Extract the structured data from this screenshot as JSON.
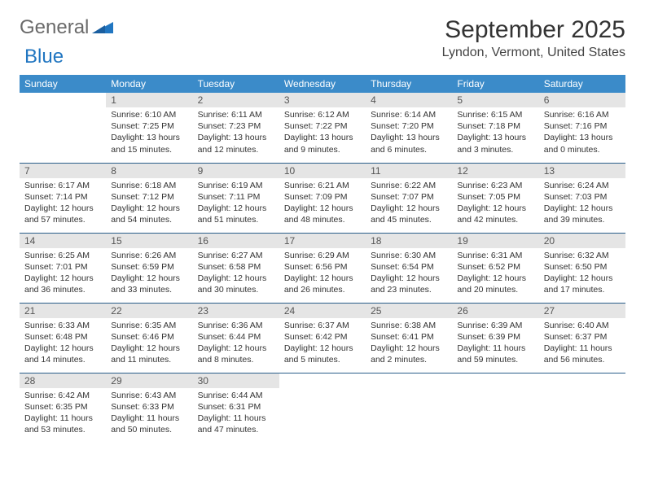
{
  "logo": {
    "text1": "General",
    "text2": "Blue"
  },
  "title": "September 2025",
  "location": "Lyndon, Vermont, United States",
  "colors": {
    "header_bg": "#3b8bc9",
    "header_text": "#ffffff",
    "daynum_bg": "#e5e5e5",
    "row_border": "#2a5e8a",
    "logo_gray": "#6a6a6a",
    "logo_blue": "#2176c1"
  },
  "day_headers": [
    "Sunday",
    "Monday",
    "Tuesday",
    "Wednesday",
    "Thursday",
    "Friday",
    "Saturday"
  ],
  "weeks": [
    [
      null,
      {
        "n": "1",
        "sunrise": "6:10 AM",
        "sunset": "7:25 PM",
        "daylight": "13 hours and 15 minutes."
      },
      {
        "n": "2",
        "sunrise": "6:11 AM",
        "sunset": "7:23 PM",
        "daylight": "13 hours and 12 minutes."
      },
      {
        "n": "3",
        "sunrise": "6:12 AM",
        "sunset": "7:22 PM",
        "daylight": "13 hours and 9 minutes."
      },
      {
        "n": "4",
        "sunrise": "6:14 AM",
        "sunset": "7:20 PM",
        "daylight": "13 hours and 6 minutes."
      },
      {
        "n": "5",
        "sunrise": "6:15 AM",
        "sunset": "7:18 PM",
        "daylight": "13 hours and 3 minutes."
      },
      {
        "n": "6",
        "sunrise": "6:16 AM",
        "sunset": "7:16 PM",
        "daylight": "13 hours and 0 minutes."
      }
    ],
    [
      {
        "n": "7",
        "sunrise": "6:17 AM",
        "sunset": "7:14 PM",
        "daylight": "12 hours and 57 minutes."
      },
      {
        "n": "8",
        "sunrise": "6:18 AM",
        "sunset": "7:12 PM",
        "daylight": "12 hours and 54 minutes."
      },
      {
        "n": "9",
        "sunrise": "6:19 AM",
        "sunset": "7:11 PM",
        "daylight": "12 hours and 51 minutes."
      },
      {
        "n": "10",
        "sunrise": "6:21 AM",
        "sunset": "7:09 PM",
        "daylight": "12 hours and 48 minutes."
      },
      {
        "n": "11",
        "sunrise": "6:22 AM",
        "sunset": "7:07 PM",
        "daylight": "12 hours and 45 minutes."
      },
      {
        "n": "12",
        "sunrise": "6:23 AM",
        "sunset": "7:05 PM",
        "daylight": "12 hours and 42 minutes."
      },
      {
        "n": "13",
        "sunrise": "6:24 AM",
        "sunset": "7:03 PM",
        "daylight": "12 hours and 39 minutes."
      }
    ],
    [
      {
        "n": "14",
        "sunrise": "6:25 AM",
        "sunset": "7:01 PM",
        "daylight": "12 hours and 36 minutes."
      },
      {
        "n": "15",
        "sunrise": "6:26 AM",
        "sunset": "6:59 PM",
        "daylight": "12 hours and 33 minutes."
      },
      {
        "n": "16",
        "sunrise": "6:27 AM",
        "sunset": "6:58 PM",
        "daylight": "12 hours and 30 minutes."
      },
      {
        "n": "17",
        "sunrise": "6:29 AM",
        "sunset": "6:56 PM",
        "daylight": "12 hours and 26 minutes."
      },
      {
        "n": "18",
        "sunrise": "6:30 AM",
        "sunset": "6:54 PM",
        "daylight": "12 hours and 23 minutes."
      },
      {
        "n": "19",
        "sunrise": "6:31 AM",
        "sunset": "6:52 PM",
        "daylight": "12 hours and 20 minutes."
      },
      {
        "n": "20",
        "sunrise": "6:32 AM",
        "sunset": "6:50 PM",
        "daylight": "12 hours and 17 minutes."
      }
    ],
    [
      {
        "n": "21",
        "sunrise": "6:33 AM",
        "sunset": "6:48 PM",
        "daylight": "12 hours and 14 minutes."
      },
      {
        "n": "22",
        "sunrise": "6:35 AM",
        "sunset": "6:46 PM",
        "daylight": "12 hours and 11 minutes."
      },
      {
        "n": "23",
        "sunrise": "6:36 AM",
        "sunset": "6:44 PM",
        "daylight": "12 hours and 8 minutes."
      },
      {
        "n": "24",
        "sunrise": "6:37 AM",
        "sunset": "6:42 PM",
        "daylight": "12 hours and 5 minutes."
      },
      {
        "n": "25",
        "sunrise": "6:38 AM",
        "sunset": "6:41 PM",
        "daylight": "12 hours and 2 minutes."
      },
      {
        "n": "26",
        "sunrise": "6:39 AM",
        "sunset": "6:39 PM",
        "daylight": "11 hours and 59 minutes."
      },
      {
        "n": "27",
        "sunrise": "6:40 AM",
        "sunset": "6:37 PM",
        "daylight": "11 hours and 56 minutes."
      }
    ],
    [
      {
        "n": "28",
        "sunrise": "6:42 AM",
        "sunset": "6:35 PM",
        "daylight": "11 hours and 53 minutes."
      },
      {
        "n": "29",
        "sunrise": "6:43 AM",
        "sunset": "6:33 PM",
        "daylight": "11 hours and 50 minutes."
      },
      {
        "n": "30",
        "sunrise": "6:44 AM",
        "sunset": "6:31 PM",
        "daylight": "11 hours and 47 minutes."
      },
      null,
      null,
      null,
      null
    ]
  ],
  "labels": {
    "sunrise": "Sunrise:",
    "sunset": "Sunset:",
    "daylight": "Daylight:"
  }
}
